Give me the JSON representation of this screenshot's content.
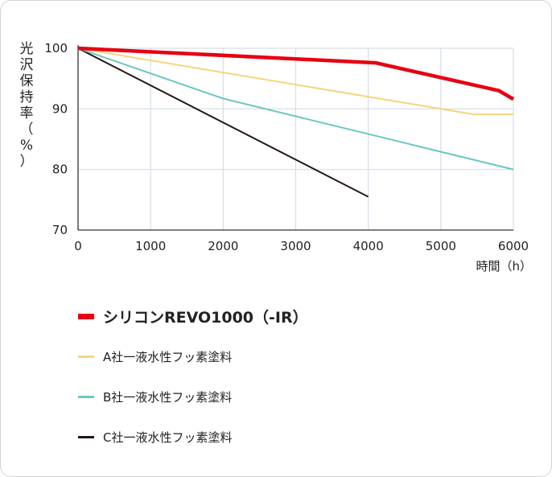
{
  "chart_data": {
    "type": "line",
    "ylabel": "光沢保持率（%）",
    "xlabel": "時間（h）",
    "xlim": [
      0,
      6000
    ],
    "ylim": [
      70,
      100
    ],
    "x_ticks": [
      "0",
      "1000",
      "2000",
      "3000",
      "4000",
      "5000",
      "6000"
    ],
    "y_ticks": [
      "70",
      "80",
      "90",
      "100"
    ],
    "grid": true,
    "legend_position": "bottom",
    "series": [
      {
        "name": "シリコンREVO1000（-IR）",
        "color": "#e60012",
        "x": [
          0,
          4100,
          5800,
          6000
        ],
        "y": [
          100,
          97.6,
          93.0,
          91.6
        ]
      },
      {
        "name": "A社一液水性フッ素塗料",
        "color": "#f8d37e",
        "x": [
          0,
          5450,
          6000
        ],
        "y": [
          100,
          89.1,
          89.1
        ]
      },
      {
        "name": "B社一液水性フッ素塗料",
        "color": "#6cc6c3",
        "x": [
          0,
          2000,
          6000
        ],
        "y": [
          100,
          91.7,
          80.0
        ]
      },
      {
        "name": "C社一液水性フッ素塗料",
        "color": "#231815",
        "x": [
          0,
          4000
        ],
        "y": [
          100,
          75.5
        ]
      }
    ]
  }
}
